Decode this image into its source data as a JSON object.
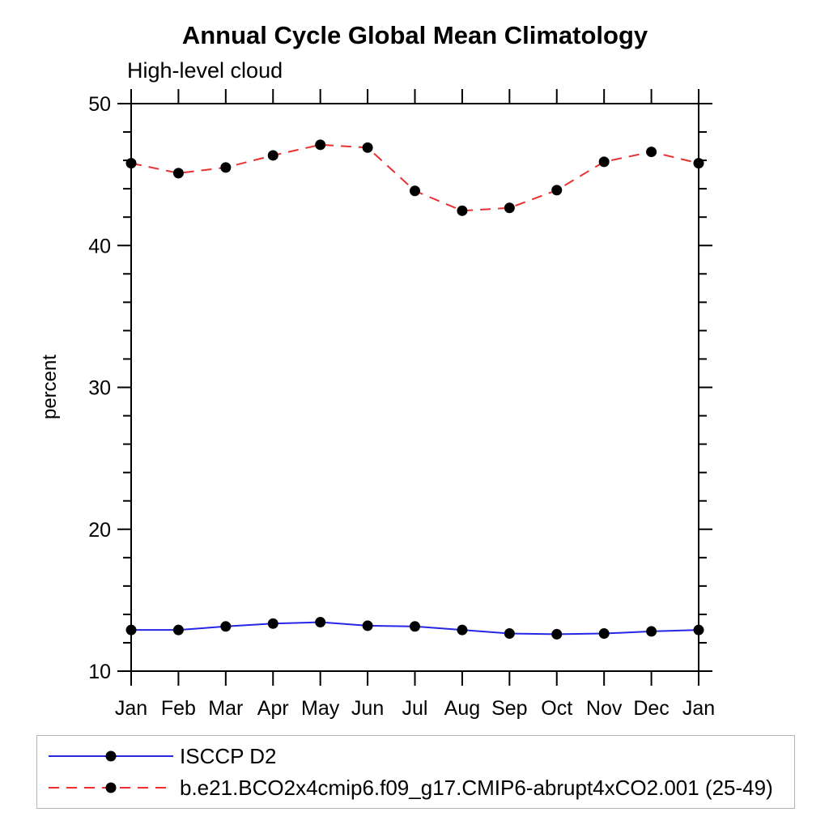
{
  "chart": {
    "title": "Annual Cycle Global Mean Climatology",
    "subtitle": "High-level cloud",
    "ylabel": "percent"
  },
  "colors": {
    "axis": "#000000",
    "marker": "#000000",
    "series1": "#2626e6",
    "series2": "#ea3030",
    "legend_border": "#b4b4b4",
    "background": "#ffffff"
  },
  "chart_data": {
    "type": "line",
    "title": "Annual Cycle Global Mean Climatology",
    "subtitle": "High-level cloud",
    "xlabel": "",
    "ylabel": "percent",
    "categories": [
      "Jan",
      "Feb",
      "Mar",
      "Apr",
      "May",
      "Jun",
      "Jul",
      "Aug",
      "Sep",
      "Oct",
      "Nov",
      "Dec",
      "Jan"
    ],
    "series": [
      {
        "name": "ISCCP D2",
        "color": "#2626e6",
        "style": "solid",
        "marker": "black-circle",
        "values": [
          12.9,
          12.9,
          13.15,
          13.35,
          13.45,
          13.2,
          13.15,
          12.9,
          12.65,
          12.6,
          12.65,
          12.8,
          12.9
        ]
      },
      {
        "name": "b.e21.BCO2x4cmip6.f09_g17.CMIP6-abrupt4xCO2.001 (25-49)",
        "color": "#ea3030",
        "style": "dashed",
        "marker": "black-circle",
        "values": [
          45.8,
          45.1,
          45.5,
          46.35,
          47.1,
          46.9,
          43.85,
          42.45,
          42.65,
          43.9,
          45.9,
          46.6,
          45.8
        ]
      }
    ],
    "ylim": [
      10,
      50
    ],
    "yticks_major": [
      10,
      20,
      30,
      40,
      50
    ],
    "ytick_minor_step": 2,
    "grid": false,
    "frame": "box-with-outward-ticks",
    "legend_position": "bottom"
  }
}
